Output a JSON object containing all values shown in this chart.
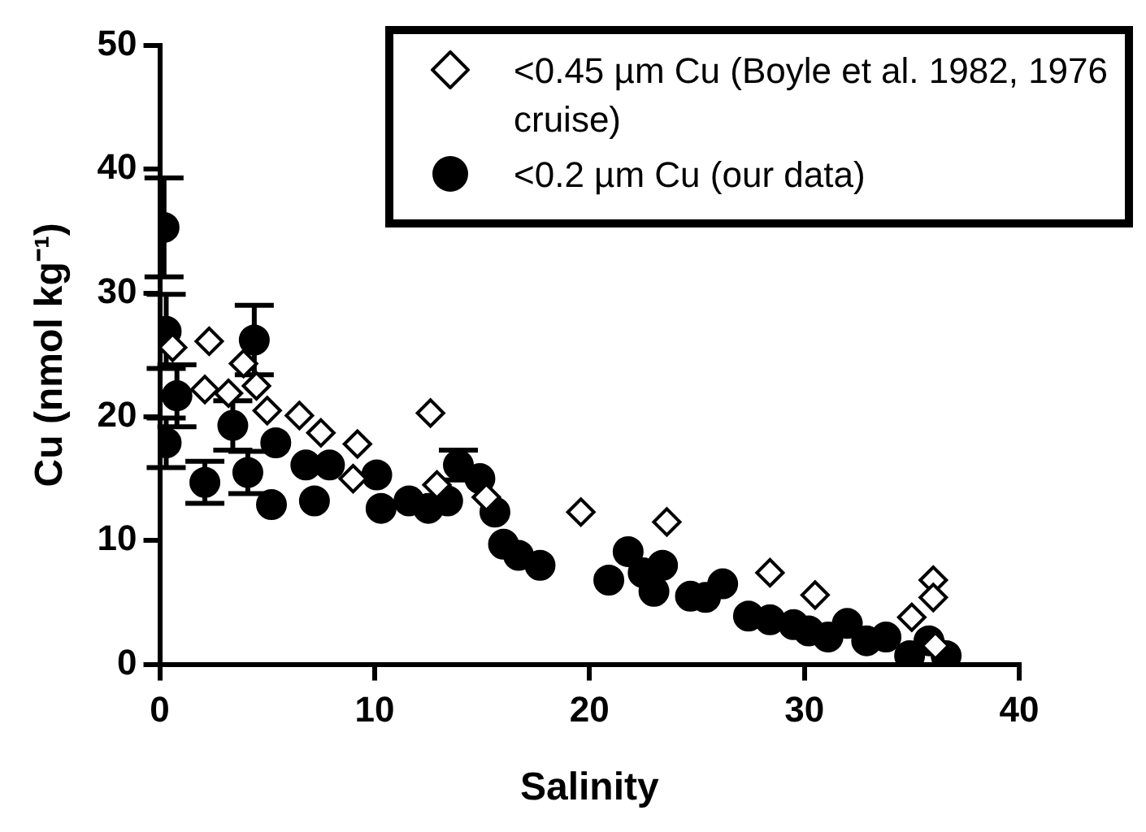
{
  "chart_data": {
    "type": "scatter",
    "xlabel": "Salinity",
    "ylabel": "Cu (nmol kg⁻¹)",
    "xlim": [
      0,
      40
    ],
    "xticks": [
      0,
      10,
      20,
      30,
      40
    ],
    "ylim": [
      0,
      50
    ],
    "yticks": [
      0,
      10,
      20,
      30,
      40,
      50
    ],
    "grid": false,
    "legend": "top right",
    "series": [
      {
        "name": "<0.45 µm Cu (Boyle et al. 1982, 1976 cruise)",
        "color": "#000000",
        "marker": "diamond",
        "x": [
          0.6,
          2.3,
          2.1,
          3.2,
          3.9,
          4.5,
          5.0,
          6.5,
          7.5,
          9.2,
          9.0,
          12.6,
          12.9,
          15.2,
          19.6,
          23.6,
          28.4,
          30.5,
          35.0,
          36.0,
          36.0,
          36.1
        ],
        "values": [
          25.6,
          26.1,
          22.2,
          21.9,
          24.3,
          22.5,
          20.5,
          20.1,
          18.7,
          17.8,
          15.0,
          20.3,
          14.5,
          13.5,
          12.3,
          11.5,
          7.4,
          5.6,
          3.8,
          6.8,
          5.4,
          1.5
        ]
      },
      {
        "name": "<0.2 µm Cu (our data)",
        "color": "#000000",
        "marker": "circle",
        "x": [
          0.2,
          0.3,
          0.3,
          0.8,
          2.1,
          3.4,
          4.4,
          4.1,
          5.2,
          5.4,
          7.2,
          6.8,
          7.9,
          10.3,
          10.1,
          11.6,
          12.5,
          13.4,
          13.9,
          14.9,
          15.6,
          16.0,
          16.7,
          17.7,
          20.9,
          21.8,
          22.5,
          23.0,
          23.4,
          24.7,
          25.4,
          26.2,
          27.4,
          28.4,
          29.5,
          30.2,
          31.1,
          32.0,
          32.9,
          33.8,
          34.9,
          35.8,
          36.6
        ],
        "values": [
          35.3,
          26.9,
          17.9,
          21.7,
          14.7,
          19.3,
          26.2,
          15.5,
          12.9,
          17.9,
          13.2,
          16.1,
          16.1,
          12.6,
          15.3,
          13.2,
          12.6,
          13.2,
          16.1,
          15.0,
          12.3,
          9.7,
          8.8,
          8.0,
          6.8,
          9.1,
          7.4,
          5.9,
          8.0,
          5.5,
          5.4,
          6.5,
          3.9,
          3.6,
          3.2,
          2.7,
          2.2,
          3.3,
          1.9,
          2.2,
          0.7,
          1.9,
          0.7
        ],
        "errors": [
          4,
          3,
          2,
          2.5,
          1.7,
          2,
          2.8,
          1.7,
          null,
          null,
          null,
          null,
          null,
          null,
          null,
          null,
          null,
          null,
          1.2,
          null,
          null,
          null,
          null,
          null,
          null,
          null,
          null,
          null,
          null,
          null,
          null,
          null,
          null,
          null,
          null,
          null,
          null,
          null,
          null,
          null,
          null,
          null,
          null
        ]
      }
    ]
  }
}
